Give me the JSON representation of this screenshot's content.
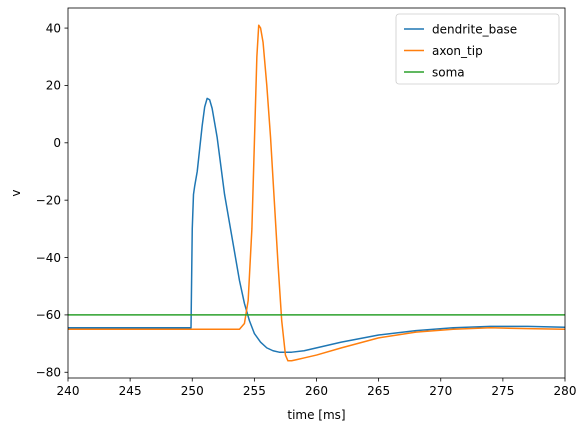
{
  "chart_data": {
    "type": "line",
    "title": "",
    "xlabel": "time [ms]",
    "ylabel": "v",
    "xlim": [
      240,
      280
    ],
    "ylim": [
      -82,
      47
    ],
    "xticks": [
      "240",
      "245",
      "250",
      "255",
      "260",
      "265",
      "270",
      "275",
      "280"
    ],
    "yticks": [
      "40",
      "20",
      "0",
      "−20",
      "−40",
      "−60",
      "−80"
    ],
    "grid": false,
    "legend_position": "top-right",
    "series": [
      {
        "name": "dendrite_base",
        "color": "#1f77b4",
        "x": [
          240,
          249.9,
          250.0,
          250.1,
          250.2,
          250.4,
          250.6,
          250.8,
          251.0,
          251.2,
          251.4,
          251.6,
          251.8,
          252.0,
          252.3,
          252.6,
          253.0,
          253.4,
          253.8,
          254.2,
          254.6,
          255.0,
          255.5,
          256.0,
          256.5,
          257.0,
          258.0,
          259.0,
          260.0,
          262.0,
          265.0,
          268.0,
          271.0,
          274.0,
          277.0,
          280.0
        ],
        "y": [
          -64.5,
          -64.5,
          -30,
          -18,
          -15,
          -10,
          -2,
          6,
          12.5,
          15.5,
          15,
          12,
          7,
          2,
          -8,
          -18,
          -28,
          -38,
          -48,
          -56,
          -62,
          -66.5,
          -69.5,
          -71.5,
          -72.5,
          -73,
          -73,
          -72.5,
          -71.5,
          -69.5,
          -67,
          -65.5,
          -64.5,
          -64,
          -64,
          -64.3
        ]
      },
      {
        "name": "axon_tip",
        "color": "#ff7f0e",
        "x": [
          240,
          253.8,
          254.2,
          254.5,
          254.8,
          255.0,
          255.2,
          255.35,
          255.5,
          255.7,
          256.0,
          256.3,
          256.6,
          256.9,
          257.2,
          257.5,
          257.7,
          258.0,
          258.5,
          259.0,
          260.0,
          262.0,
          265.0,
          268.0,
          271.0,
          274.0,
          277.0,
          280.0
        ],
        "y": [
          -65,
          -65,
          -63,
          -55,
          -30,
          0,
          30,
          41,
          40,
          35,
          20,
          2,
          -20,
          -42,
          -62,
          -74,
          -76,
          -76,
          -75.5,
          -75,
          -74,
          -71.5,
          -68,
          -66,
          -65,
          -64.5,
          -64.8,
          -65
        ]
      },
      {
        "name": "soma",
        "color": "#2ca02c",
        "x": [
          240,
          280
        ],
        "y": [
          -60,
          -60
        ]
      }
    ]
  }
}
